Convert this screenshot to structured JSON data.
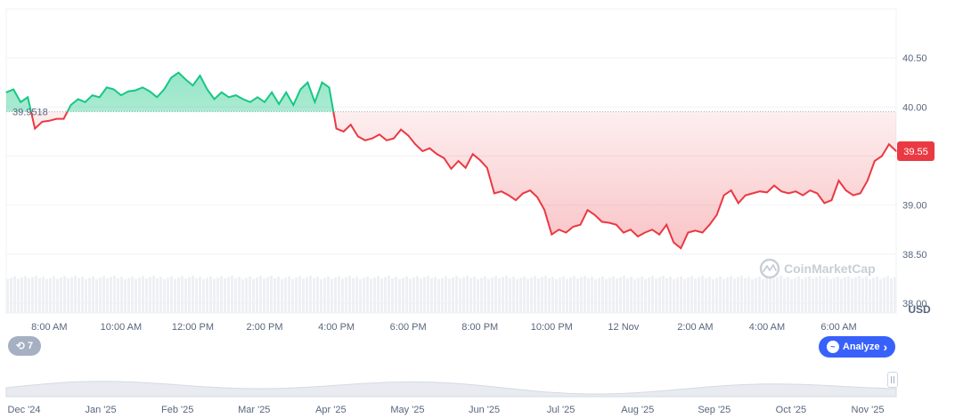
{
  "chart_data": {
    "type": "line",
    "title": "",
    "unit_label": "USD",
    "baseline": 39.9518,
    "baseline_label": "39.9518",
    "current_value": 39.55,
    "current_label": "39.55",
    "ylim": [
      37.9,
      41.0
    ],
    "y_ticks": [
      {
        "value": 40.5,
        "label": "40.50"
      },
      {
        "value": 40.0,
        "label": "40.00"
      },
      {
        "value": 39.5,
        "label": ""
      },
      {
        "value": 39.0,
        "label": "39.00"
      },
      {
        "value": 38.5,
        "label": "38.50"
      },
      {
        "value": 38.0,
        "label": "38.00"
      }
    ],
    "x_range": [
      6.8,
      31.6
    ],
    "x_tick_labels": [
      {
        "x": 8,
        "label": "8:00 AM"
      },
      {
        "x": 10,
        "label": "10:00 AM"
      },
      {
        "x": 12,
        "label": "12:00 PM"
      },
      {
        "x": 14,
        "label": "2:00 PM"
      },
      {
        "x": 16,
        "label": "4:00 PM"
      },
      {
        "x": 18,
        "label": "6:00 PM"
      },
      {
        "x": 20,
        "label": "8:00 PM"
      },
      {
        "x": 22,
        "label": "10:00 PM"
      },
      {
        "x": 24,
        "label": "12 Nov"
      },
      {
        "x": 26,
        "label": "2:00 AM"
      },
      {
        "x": 28,
        "label": "4:00 AM"
      },
      {
        "x": 30,
        "label": "6:00 AM"
      }
    ],
    "colors": {
      "above": "#16c784",
      "below": "#ea3943",
      "axis_text": "#58667e",
      "grid": "#eff2f5"
    },
    "series": [
      {
        "x": [
          6.8,
          7.0,
          7.2,
          7.4,
          7.6,
          7.8,
          8.0,
          8.2,
          8.4,
          8.6,
          8.8,
          9.0,
          9.2,
          9.4,
          9.6,
          9.8,
          10.0,
          10.2,
          10.4,
          10.6,
          10.8,
          11.0,
          11.2,
          11.4,
          11.6,
          11.8,
          12.0,
          12.2,
          12.4,
          12.6,
          12.8,
          13.0,
          13.2,
          13.4,
          13.6,
          13.8,
          14.0,
          14.2,
          14.4,
          14.6,
          14.8,
          15.0,
          15.2,
          15.4,
          15.6,
          15.8,
          16.0,
          16.2,
          16.4,
          16.6,
          16.8,
          17.0,
          17.2,
          17.4,
          17.6,
          17.8,
          18.0,
          18.2,
          18.4,
          18.6,
          18.8,
          19.0,
          19.2,
          19.4,
          19.6,
          19.8,
          20.0,
          20.2,
          20.4,
          20.6,
          20.8,
          21.0,
          21.2,
          21.4,
          21.6,
          21.8,
          22.0,
          22.2,
          22.4,
          22.6,
          22.8,
          23.0,
          23.2,
          23.4,
          23.6,
          23.8,
          24.0,
          24.2,
          24.4,
          24.6,
          24.8,
          25.0,
          25.2,
          25.4,
          25.6,
          25.8,
          26.0,
          26.2,
          26.4,
          26.6,
          26.8,
          27.0,
          27.2,
          27.4,
          27.6,
          27.8,
          28.0,
          28.2,
          28.4,
          28.6,
          28.8,
          29.0,
          29.2,
          29.4,
          29.6,
          29.8,
          30.0,
          30.2,
          30.4,
          30.6,
          30.8,
          31.0,
          31.2,
          31.4,
          31.6
        ],
        "values": [
          40.15,
          40.18,
          40.05,
          40.1,
          39.78,
          39.85,
          39.86,
          39.88,
          39.88,
          40.02,
          40.08,
          40.05,
          40.12,
          40.1,
          40.2,
          40.18,
          40.12,
          40.16,
          40.17,
          40.2,
          40.16,
          40.1,
          40.18,
          40.3,
          40.35,
          40.28,
          40.22,
          40.32,
          40.18,
          40.08,
          40.15,
          40.1,
          40.12,
          40.08,
          40.05,
          40.1,
          40.05,
          40.15,
          40.03,
          40.15,
          40.02,
          40.18,
          40.25,
          40.05,
          40.25,
          40.2,
          39.78,
          39.75,
          39.82,
          39.7,
          39.66,
          39.68,
          39.72,
          39.66,
          39.68,
          39.77,
          39.71,
          39.62,
          39.55,
          39.58,
          39.52,
          39.48,
          39.37,
          39.45,
          39.38,
          39.52,
          39.46,
          39.38,
          39.12,
          39.14,
          39.1,
          39.05,
          39.12,
          39.15,
          39.08,
          38.95,
          38.7,
          38.75,
          38.72,
          38.78,
          38.8,
          38.95,
          38.9,
          38.83,
          38.82,
          38.8,
          38.72,
          38.75,
          38.68,
          38.72,
          38.75,
          38.7,
          38.8,
          38.62,
          38.56,
          38.72,
          38.74,
          38.72,
          38.8,
          38.9,
          39.1,
          39.15,
          39.02,
          39.1,
          39.12,
          39.14,
          39.13,
          39.2,
          39.14,
          39.12,
          39.14,
          39.1,
          39.15,
          39.12,
          39.02,
          39.05,
          39.25,
          39.15,
          39.1,
          39.12,
          39.25,
          39.45,
          39.5,
          39.62,
          39.55
        ]
      }
    ],
    "navigator": {
      "labels": [
        "Dec '24",
        "Jan '25",
        "Feb '25",
        "Mar '25",
        "Apr '25",
        "May '25",
        "Jun '25",
        "Jul '25",
        "Aug '25",
        "Sep '25",
        "Oct '25",
        "Nov '25"
      ]
    }
  },
  "watermark": "CoinMarketCap",
  "history_chip": {
    "label": "7",
    "icon": "history-icon"
  },
  "analyze_button": {
    "label": "Analyze",
    "icon": "analyze-icon",
    "arrow": "›"
  }
}
